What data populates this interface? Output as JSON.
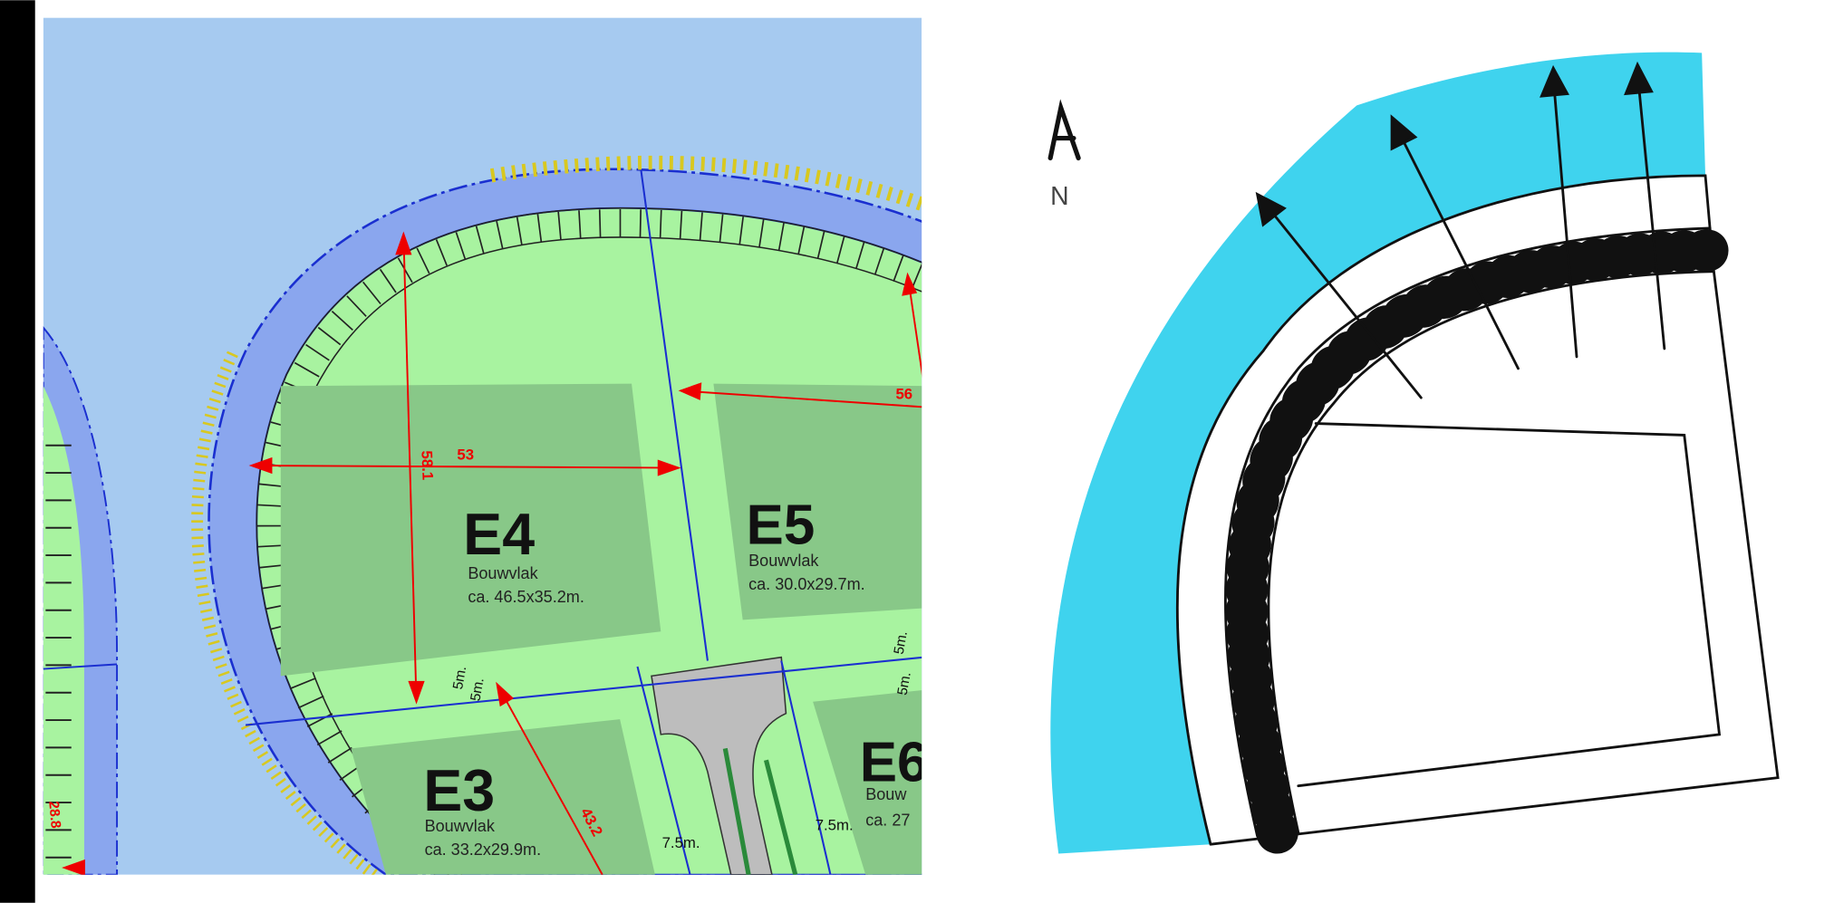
{
  "map": {
    "lots": [
      {
        "label": "E4",
        "type": "Bouwvlak",
        "size": "ca. 46.5x35.2m."
      },
      {
        "label": "E5",
        "type": "Bouwvlak",
        "size": "ca. 30.0x29.7m."
      },
      {
        "label": "E3",
        "type": "Bouwvlak",
        "size": "ca. 33.2x29.9m."
      },
      {
        "label": "E6",
        "type": "Bouw",
        "size": "ca. 27"
      }
    ],
    "dimensions": [
      "53",
      "58.1",
      "56",
      "43.2",
      "28.8"
    ],
    "setbacks": [
      "5m.",
      "5m.",
      "5m.",
      "5m.",
      "7.5m.",
      "7.5m."
    ]
  },
  "sketch": {
    "north_label": "N"
  }
}
